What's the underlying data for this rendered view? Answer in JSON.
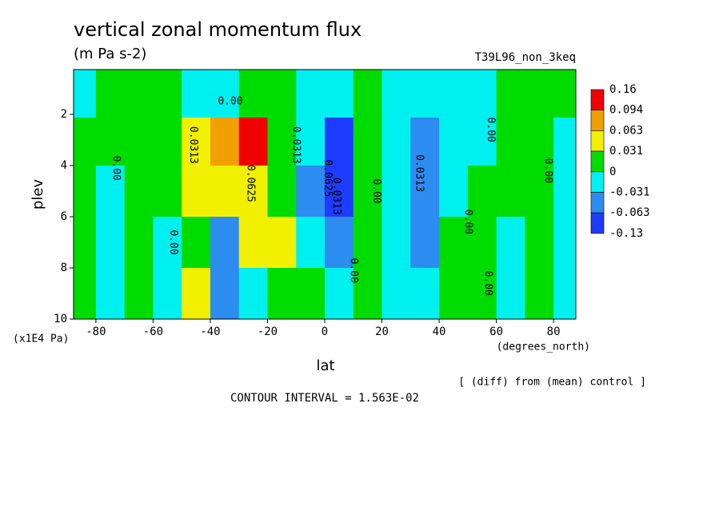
{
  "chart_data": {
    "type": "contour",
    "title": "vertical zonal momentum flux",
    "subtitle": "(m Pa s-2)",
    "run_label": "T39L96_non_3keq",
    "x_label": "lat",
    "x_unit": "(degrees_north)",
    "y_label": "plev",
    "y_unit": "(x1E4 Pa)",
    "note": "[ (diff) from (mean) control ]",
    "contour_interval": "CONTOUR INTERVAL = 1.563E-02",
    "xlim": [
      -87.8,
      87.8
    ],
    "ylim": [
      10,
      0.25
    ],
    "xticks": [
      -80,
      -60,
      -40,
      -20,
      0,
      20,
      40,
      60,
      80
    ],
    "yticks": [
      2,
      4,
      6,
      8,
      10
    ],
    "x": [
      -85,
      -75,
      -65,
      -55,
      -45,
      -35,
      -25,
      -15,
      -5,
      5,
      15,
      25,
      35,
      45,
      55,
      65,
      75,
      85
    ],
    "y": [
      1.25,
      3,
      5,
      7,
      9
    ],
    "z": [
      [
        -0.015,
        0.015,
        0.015,
        0.015,
        -0.015,
        -0.015,
        0.015,
        0.015,
        -0.015,
        -0.015,
        0.015,
        -0.015,
        -0.015,
        -0.015,
        -0.015,
        0.015,
        0.015,
        0.015
      ],
      [
        0.015,
        0.015,
        0.015,
        0.015,
        0.045,
        0.08,
        0.12,
        0.015,
        -0.015,
        -0.08,
        0.015,
        -0.015,
        -0.045,
        -0.015,
        -0.015,
        0.015,
        0.015,
        -0.015
      ],
      [
        0.015,
        -0.015,
        0.015,
        0.015,
        0.045,
        0.045,
        0.045,
        0.015,
        -0.045,
        -0.08,
        0.015,
        -0.015,
        -0.045,
        -0.015,
        0.015,
        0.015,
        0.015,
        -0.015
      ],
      [
        0.015,
        -0.015,
        0.015,
        -0.015,
        0.015,
        -0.045,
        0.045,
        0.045,
        -0.015,
        -0.045,
        0.015,
        -0.015,
        -0.045,
        0.015,
        0.015,
        -0.015,
        0.015,
        -0.015
      ],
      [
        0.015,
        -0.015,
        0.015,
        -0.015,
        0.045,
        -0.045,
        -0.015,
        0.015,
        0.015,
        -0.015,
        0.015,
        -0.015,
        -0.015,
        0.015,
        0.015,
        -0.015,
        0.015,
        -0.015
      ]
    ],
    "levels": [
      0.16,
      0.094,
      0.063,
      0.031,
      0,
      -0.031,
      -0.063,
      -0.13
    ],
    "colors": [
      "#f00000",
      "#f0a000",
      "#f0f000",
      "#00dc00",
      "#00f0f0",
      "#2d8cf0",
      "#1e3cff"
    ],
    "contour_labels": [
      {
        "label": "0.00",
        "lat": -33,
        "plev": 1.5
      },
      {
        "label": "0.0313",
        "lat": -46,
        "plev": 3.2
      },
      {
        "label": "0.00",
        "lat": -73,
        "plev": 4.1
      },
      {
        "label": "0.00",
        "lat": -53,
        "plev": 7
      },
      {
        "label": "0.0625",
        "lat": -26,
        "plev": 4.7
      },
      {
        "label": "0.0313",
        "lat": -10,
        "plev": 3.2
      },
      {
        "label": "0.0625",
        "lat": 1,
        "plev": 4.5
      },
      {
        "label": "0.0313",
        "lat": 4,
        "plev": 5.2
      },
      {
        "label": "0.00",
        "lat": 18,
        "plev": 5
      },
      {
        "label": "0.00",
        "lat": 10,
        "plev": 8.1
      },
      {
        "label": "0.0313",
        "lat": 33,
        "plev": 4.3
      },
      {
        "label": "0.00",
        "lat": 50,
        "plev": 6.2
      },
      {
        "label": "0.00",
        "lat": 57,
        "plev": 8.6
      },
      {
        "label": "0.00",
        "lat": 58,
        "plev": 2.6
      },
      {
        "label": "0.00",
        "lat": 78,
        "plev": 4.2
      }
    ]
  }
}
